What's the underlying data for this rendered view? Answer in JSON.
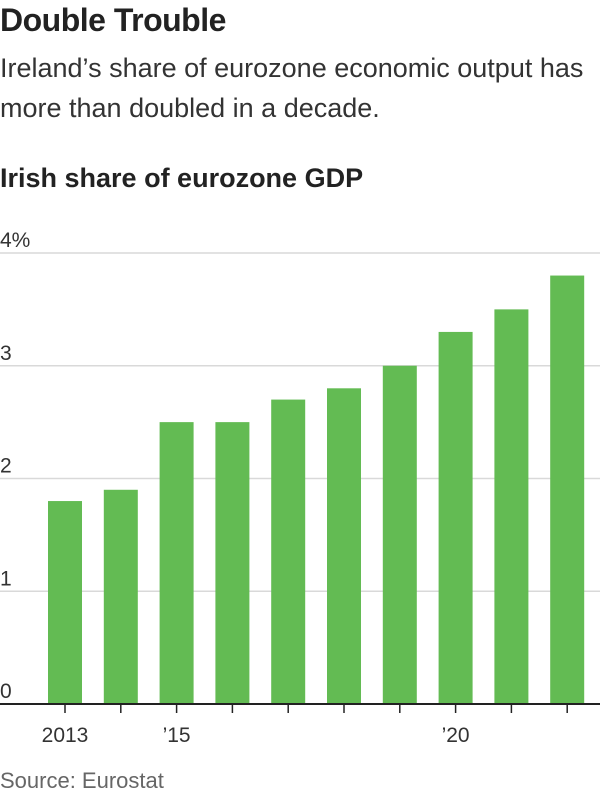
{
  "header": {
    "title": "Double Trouble",
    "subtitle": "Ireland’s share of eurozone economic output has more than doubled in a decade."
  },
  "footer": {
    "source": "Source: Eurostat"
  },
  "colors": {
    "bar": "#63bb53",
    "grid": "#d9d9d9",
    "axis": "#222222",
    "text": "#222222"
  },
  "chart_data": {
    "type": "bar",
    "title": "Irish share of eurozone GDP",
    "xlabel": "",
    "ylabel": "",
    "categories": [
      "2013",
      "2014",
      "2015",
      "2016",
      "2017",
      "2018",
      "2019",
      "2020",
      "2021",
      "2022"
    ],
    "x_tick_labels": [
      "2013",
      "",
      "’15",
      "",
      "",
      "",
      "",
      "’20",
      "",
      ""
    ],
    "values": [
      1.8,
      1.9,
      2.5,
      2.5,
      2.7,
      2.8,
      3.0,
      3.3,
      3.5,
      3.8
    ],
    "y_ticks": [
      0,
      1,
      2,
      3,
      4
    ],
    "y_tick_labels": [
      "0",
      "1",
      "2",
      "3",
      "4%"
    ],
    "ylim": [
      0,
      4
    ],
    "grid": true,
    "legend": "none"
  }
}
